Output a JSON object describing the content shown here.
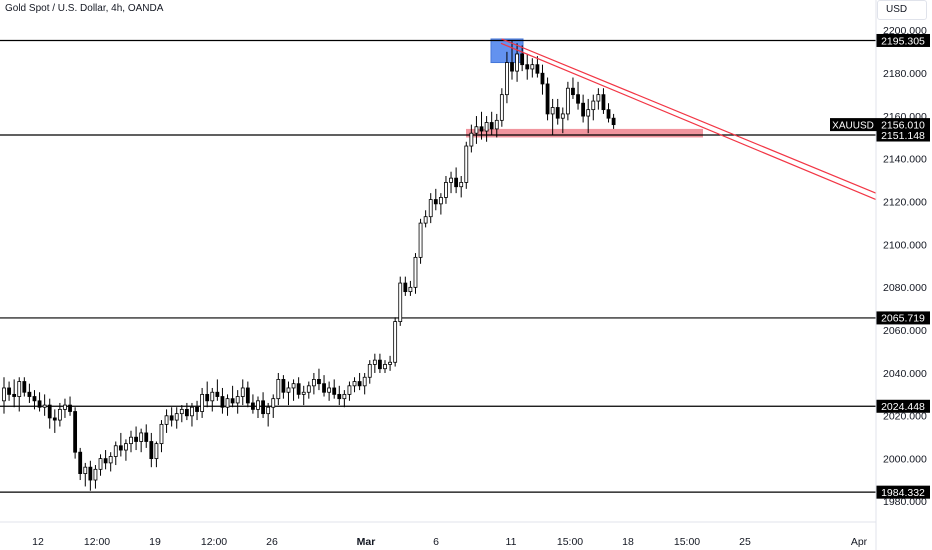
{
  "header": {
    "title": "Gold Spot / U.S. Dollar, 4h, OANDA",
    "currency": "USD"
  },
  "colors": {
    "up": "#ffffff",
    "down": "#000000",
    "wick": "#000000",
    "resistance_line": "#000000",
    "trendline": "#f23645",
    "support_zone": "#f08a94",
    "top_zone": "#5b8def",
    "axis_text": "#131722"
  },
  "chart_data": {
    "type": "candlestick",
    "symbol": "XAUUSD",
    "last_price": 2156.01,
    "ylim": [
      1976,
      2203
    ],
    "y_ticks": [
      1980,
      2000,
      2020,
      2040,
      2060,
      2080,
      2100,
      2120,
      2140,
      2160,
      2180,
      2200
    ],
    "y_tick_labels": [
      "1980.000",
      "2000.000",
      "2020.000",
      "2040.000",
      "2060.000",
      "2080.000",
      "2100.000",
      "2120.000",
      "2140.000",
      "2160.000",
      "2180.000",
      "2200.000"
    ],
    "x_labels": [
      "12",
      "12:00",
      "19",
      "12:00",
      "26",
      "Mar",
      "6",
      "11",
      "15:00",
      "18",
      "15:00",
      "25",
      "Apr"
    ],
    "x_label_bold": "Mar",
    "horizontal_levels": [
      {
        "label": "2195.305",
        "value": 2195.305
      },
      {
        "label": "2151.148",
        "value": 2151.148
      },
      {
        "label": "2065.719",
        "value": 2065.719
      },
      {
        "label": "2024.448",
        "value": 2024.448
      },
      {
        "label": "1984.332",
        "value": 1984.332
      }
    ],
    "price_tag": {
      "symbol": "XAUUSD",
      "label": "2156.010",
      "value": 2156.01
    },
    "zones": [
      {
        "name": "support-zone",
        "from": 2150,
        "to": 2154
      },
      {
        "name": "top-zone",
        "from": 2185,
        "to": 2196
      }
    ],
    "trendlines": [
      {
        "from": [
          9.2,
          2194
        ],
        "to": [
          24.6,
          2121
        ]
      },
      {
        "from": [
          9.3,
          2196
        ],
        "to": [
          24.6,
          2124
        ]
      }
    ],
    "candles_ohlc": [
      [
        2027,
        2038,
        2021,
        2033
      ],
      [
        2033,
        2036,
        2027,
        2030
      ],
      [
        2030,
        2037,
        2024,
        2029
      ],
      [
        2029,
        2038,
        2022,
        2036
      ],
      [
        2036,
        2038,
        2029,
        2031
      ],
      [
        2031,
        2035,
        2026,
        2029
      ],
      [
        2029,
        2032,
        2023,
        2027
      ],
      [
        2027,
        2031,
        2022,
        2024
      ],
      [
        2024,
        2030,
        2020,
        2025
      ],
      [
        2025,
        2028,
        2014,
        2019
      ],
      [
        2019,
        2023,
        2012,
        2018
      ],
      [
        2018,
        2026,
        2015,
        2023
      ],
      [
        2023,
        2028,
        2019,
        2025
      ],
      [
        2025,
        2029,
        2020,
        2022
      ],
      [
        2022,
        2024,
        2000,
        2003
      ],
      [
        2003,
        2005,
        1990,
        1993
      ],
      [
        1993,
        1998,
        1987,
        1996
      ],
      [
        1996,
        1999,
        1985,
        1990
      ],
      [
        1990,
        1997,
        1986,
        1995
      ],
      [
        1995,
        2002,
        1992,
        2000
      ],
      [
        2000,
        2004,
        1995,
        1998
      ],
      [
        1998,
        2003,
        1994,
        2001
      ],
      [
        2001,
        2008,
        1997,
        2006
      ],
      [
        2006,
        2012,
        2001,
        2004
      ],
      [
        2004,
        2009,
        1999,
        2007
      ],
      [
        2007,
        2013,
        2003,
        2010
      ],
      [
        2010,
        2015,
        2004,
        2008
      ],
      [
        2008,
        2014,
        2003,
        2012
      ],
      [
        2012,
        2016,
        2005,
        2008
      ],
      [
        2008,
        2012,
        1996,
        2000
      ],
      [
        2000,
        2008,
        1996,
        2007
      ],
      [
        2007,
        2018,
        2003,
        2016
      ],
      [
        2016,
        2023,
        2012,
        2020
      ],
      [
        2020,
        2024,
        2015,
        2018
      ],
      [
        2018,
        2024,
        2014,
        2021
      ],
      [
        2021,
        2025,
        2017,
        2023
      ],
      [
        2023,
        2026,
        2018,
        2020
      ],
      [
        2020,
        2026,
        2015,
        2024
      ],
      [
        2024,
        2027,
        2018,
        2022
      ],
      [
        2022,
        2033,
        2019,
        2030
      ],
      [
        2030,
        2036,
        2024,
        2027
      ],
      [
        2027,
        2033,
        2022,
        2031
      ],
      [
        2031,
        2037,
        2027,
        2029
      ],
      [
        2029,
        2033,
        2021,
        2024
      ],
      [
        2024,
        2030,
        2020,
        2028
      ],
      [
        2028,
        2034,
        2024,
        2026
      ],
      [
        2026,
        2032,
        2021,
        2029
      ],
      [
        2029,
        2037,
        2025,
        2033
      ],
      [
        2033,
        2036,
        2024,
        2026
      ],
      [
        2026,
        2030,
        2021,
        2023
      ],
      [
        2023,
        2029,
        2019,
        2027
      ],
      [
        2027,
        2031,
        2019,
        2021
      ],
      [
        2021,
        2026,
        2015,
        2024
      ],
      [
        2024,
        2030,
        2019,
        2028
      ],
      [
        2028,
        2040,
        2025,
        2037
      ],
      [
        2037,
        2039,
        2028,
        2031
      ],
      [
        2031,
        2036,
        2025,
        2033
      ],
      [
        2033,
        2037,
        2027,
        2035
      ],
      [
        2035,
        2038,
        2028,
        2030
      ],
      [
        2030,
        2034,
        2025,
        2031
      ],
      [
        2031,
        2036,
        2028,
        2034
      ],
      [
        2034,
        2040,
        2030,
        2037
      ],
      [
        2037,
        2042,
        2032,
        2035
      ],
      [
        2035,
        2039,
        2029,
        2031
      ],
      [
        2031,
        2036,
        2027,
        2033
      ],
      [
        2033,
        2037,
        2028,
        2030
      ],
      [
        2030,
        2034,
        2025,
        2028
      ],
      [
        2028,
        2032,
        2024,
        2030
      ],
      [
        2030,
        2036,
        2027,
        2034
      ],
      [
        2034,
        2038,
        2031,
        2036
      ],
      [
        2036,
        2040,
        2032,
        2034
      ],
      [
        2034,
        2040,
        2030,
        2038
      ],
      [
        2038,
        2046,
        2035,
        2044
      ],
      [
        2044,
        2049,
        2040,
        2046
      ],
      [
        2046,
        2049,
        2040,
        2042
      ],
      [
        2042,
        2046,
        2040,
        2044
      ],
      [
        2044,
        2048,
        2041,
        2045
      ],
      [
        2045,
        2066,
        2043,
        2064
      ],
      [
        2064,
        2085,
        2062,
        2082
      ],
      [
        2082,
        2085,
        2076,
        2078
      ],
      [
        2078,
        2083,
        2076,
        2080
      ],
      [
        2080,
        2096,
        2077,
        2094
      ],
      [
        2094,
        2112,
        2091,
        2110
      ],
      [
        2110,
        2116,
        2108,
        2113
      ],
      [
        2113,
        2124,
        2110,
        2121
      ],
      [
        2121,
        2126,
        2116,
        2119
      ],
      [
        2119,
        2124,
        2114,
        2122
      ],
      [
        2122,
        2132,
        2119,
        2129
      ],
      [
        2129,
        2134,
        2124,
        2131
      ],
      [
        2131,
        2136,
        2124,
        2127
      ],
      [
        2127,
        2132,
        2122,
        2129
      ],
      [
        2129,
        2148,
        2126,
        2146
      ],
      [
        2146,
        2156,
        2143,
        2152
      ],
      [
        2152,
        2160,
        2147,
        2155
      ],
      [
        2155,
        2162,
        2149,
        2153
      ],
      [
        2153,
        2160,
        2148,
        2157
      ],
      [
        2157,
        2162,
        2151,
        2154
      ],
      [
        2154,
        2161,
        2150,
        2158
      ],
      [
        2158,
        2173,
        2155,
        2170
      ],
      [
        2170,
        2190,
        2166,
        2185
      ],
      [
        2185,
        2195,
        2177,
        2181
      ],
      [
        2181,
        2194,
        2176,
        2189
      ],
      [
        2189,
        2193,
        2181,
        2184
      ],
      [
        2184,
        2189,
        2177,
        2182
      ],
      [
        2182,
        2187,
        2178,
        2184
      ],
      [
        2184,
        2188,
        2178,
        2180
      ],
      [
        2180,
        2184,
        2170,
        2175
      ],
      [
        2175,
        2178,
        2158,
        2161
      ],
      [
        2161,
        2168,
        2151,
        2164
      ],
      [
        2164,
        2168,
        2156,
        2159
      ],
      [
        2159,
        2164,
        2152,
        2161
      ],
      [
        2161,
        2176,
        2158,
        2173
      ],
      [
        2173,
        2178,
        2168,
        2170
      ],
      [
        2170,
        2176,
        2163,
        2166
      ],
      [
        2166,
        2170,
        2157,
        2160
      ],
      [
        2160,
        2168,
        2152,
        2163
      ],
      [
        2163,
        2170,
        2158,
        2167
      ],
      [
        2167,
        2173,
        2163,
        2170
      ],
      [
        2170,
        2173,
        2161,
        2163
      ],
      [
        2163,
        2166,
        2157,
        2159
      ],
      [
        2159,
        2161,
        2154,
        2156
      ]
    ]
  }
}
